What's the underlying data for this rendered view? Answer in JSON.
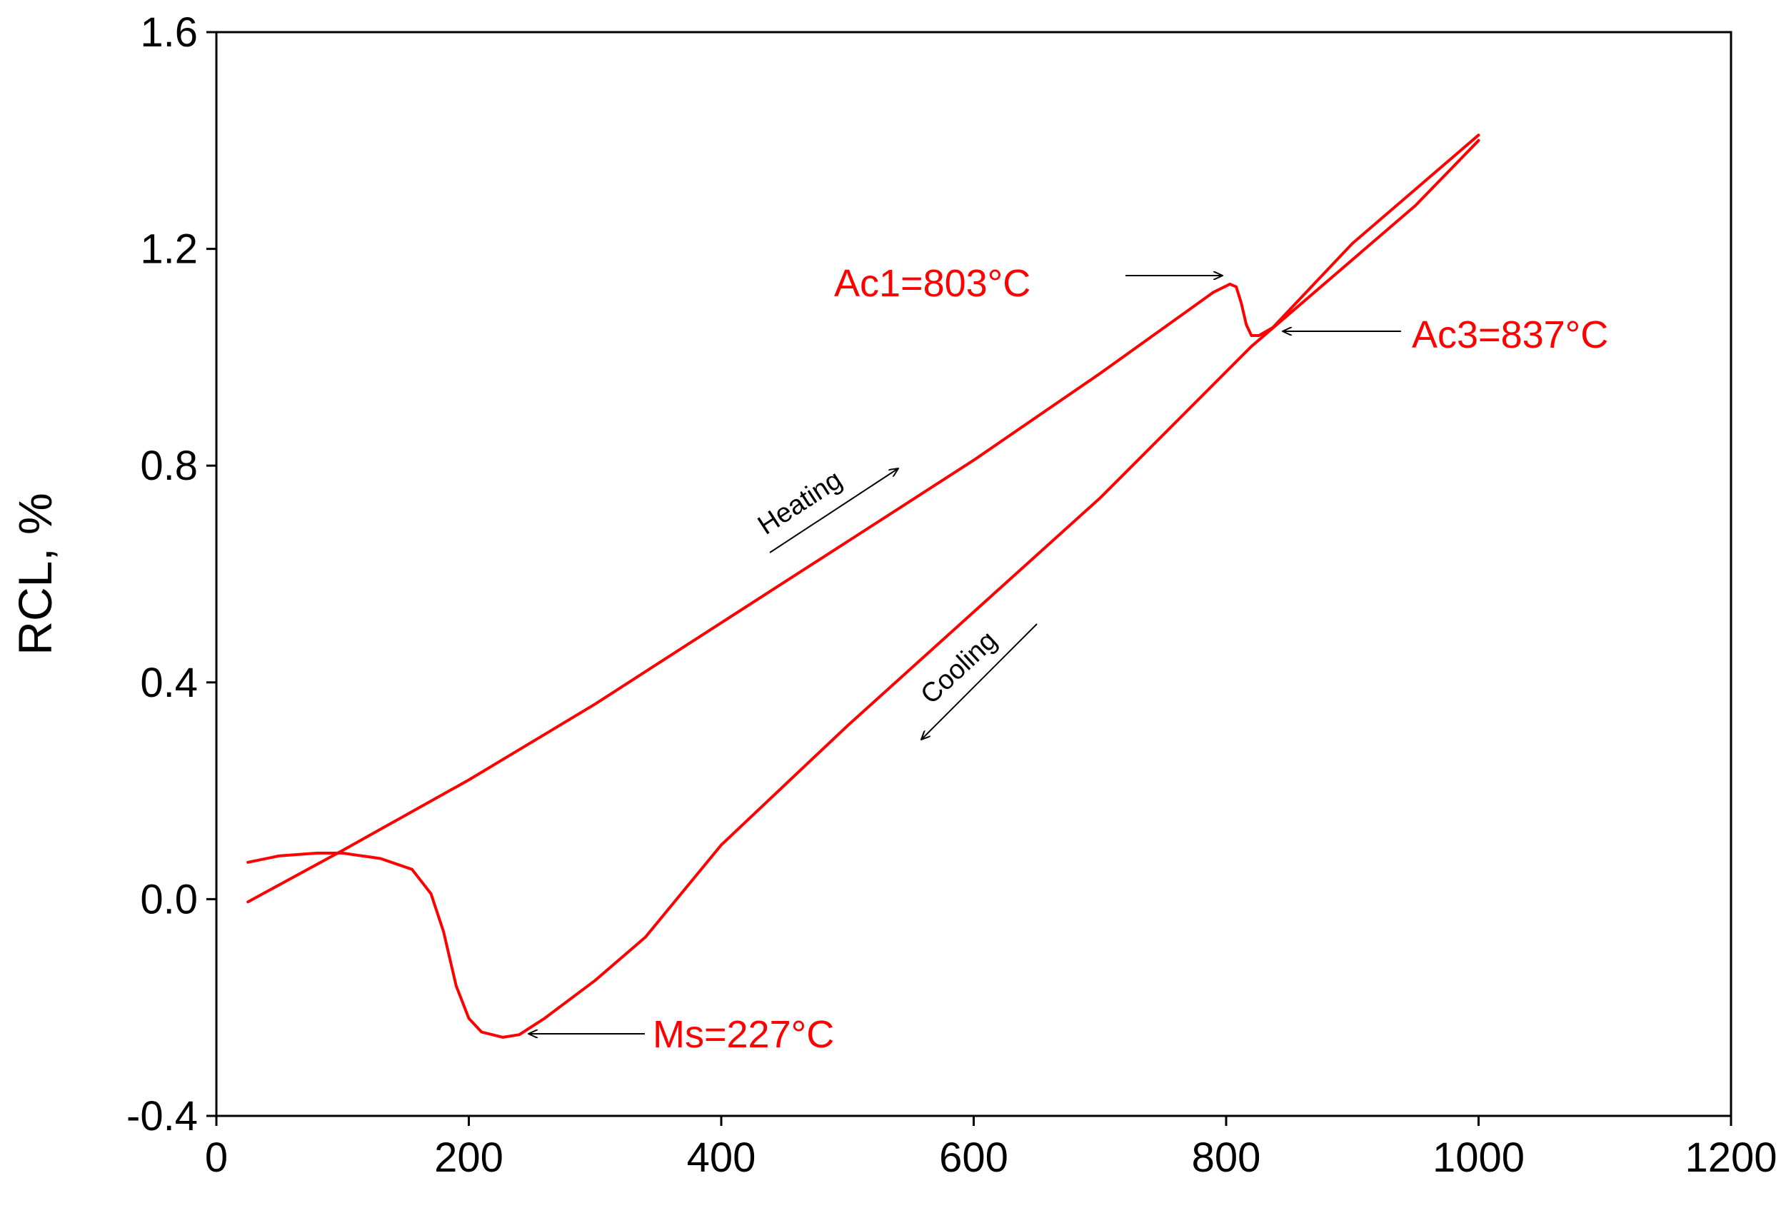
{
  "chart_data": {
    "type": "line",
    "title": "",
    "xlabel": "",
    "ylabel": "RCL, %",
    "xlim": [
      0,
      1200
    ],
    "ylim": [
      -0.4,
      1.6
    ],
    "x_ticks": [
      0,
      200,
      400,
      600,
      800,
      1000,
      1200
    ],
    "y_ticks": [
      -0.4,
      0.0,
      0.4,
      0.8,
      1.2,
      1.6
    ],
    "x_tick_labels": [
      "0",
      "200",
      "400",
      "600",
      "800",
      "1000",
      "1200"
    ],
    "y_tick_labels": [
      "-0.4",
      "0.0",
      "0.4",
      "0.8",
      "1.2",
      "1.6"
    ],
    "grid": false,
    "line_color": "#ff0000",
    "series": [
      {
        "points": [
          [
            25,
            -0.005
          ],
          [
            100,
            0.09
          ],
          [
            200,
            0.22
          ],
          [
            300,
            0.36
          ],
          [
            400,
            0.51
          ],
          [
            500,
            0.66
          ],
          [
            600,
            0.81
          ],
          [
            700,
            0.97
          ],
          [
            760,
            1.07
          ],
          [
            790,
            1.12
          ],
          [
            803,
            1.135
          ],
          [
            808,
            1.13
          ],
          [
            812,
            1.1
          ],
          [
            816,
            1.06
          ],
          [
            820,
            1.04
          ],
          [
            826,
            1.04
          ],
          [
            837,
            1.055
          ],
          [
            900,
            1.21
          ],
          [
            950,
            1.31
          ],
          [
            1000,
            1.41
          ]
        ]
      },
      {
        "points": [
          [
            1000,
            1.4
          ],
          [
            950,
            1.28
          ],
          [
            900,
            1.18
          ],
          [
            850,
            1.08
          ],
          [
            820,
            1.02
          ],
          [
            700,
            0.74
          ],
          [
            600,
            0.53
          ],
          [
            500,
            0.32
          ],
          [
            400,
            0.1
          ],
          [
            340,
            -0.07
          ],
          [
            300,
            -0.15
          ],
          [
            260,
            -0.22
          ],
          [
            240,
            -0.25
          ],
          [
            227,
            -0.255
          ],
          [
            210,
            -0.245
          ],
          [
            200,
            -0.22
          ],
          [
            190,
            -0.16
          ],
          [
            180,
            -0.06
          ],
          [
            170,
            0.01
          ],
          [
            155,
            0.055
          ],
          [
            130,
            0.075
          ],
          [
            100,
            0.085
          ],
          [
            80,
            0.085
          ],
          [
            50,
            0.08
          ],
          [
            25,
            0.068
          ]
        ]
      }
    ],
    "annotations": [
      {
        "id": "ac1",
        "text": "Ac1=803°C",
        "x": 803,
        "y": 1.135
      },
      {
        "id": "ac3",
        "text": "Ac3=837°C",
        "x": 837,
        "y": 1.04
      },
      {
        "id": "ms",
        "text": "Ms=227°C",
        "x": 227,
        "y": -0.255
      },
      {
        "id": "heating",
        "text": "Heating"
      },
      {
        "id": "cooling",
        "text": "Cooling"
      }
    ]
  }
}
